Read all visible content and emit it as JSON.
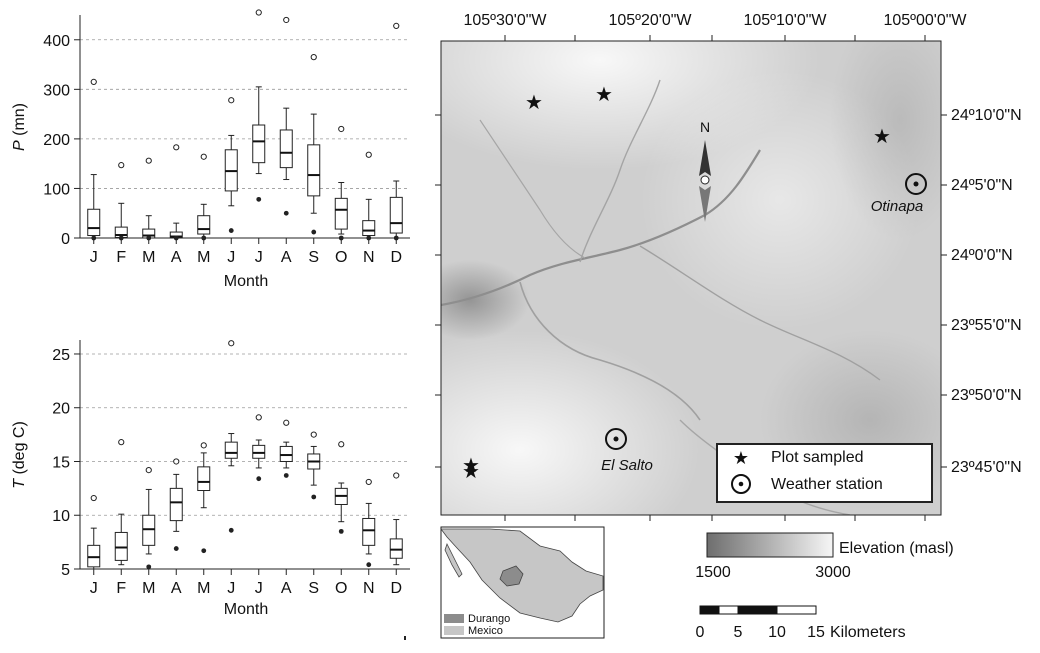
{
  "charts": [
    {
      "type": "boxplot",
      "ylabel_symbol": "P",
      "ylabel_unit": " (mn)",
      "xlabel": "Month",
      "categories": [
        "J",
        "F",
        "M",
        "A",
        "M",
        "J",
        "J",
        "A",
        "S",
        "O",
        "N",
        "D"
      ],
      "ylim": [
        0,
        450
      ],
      "yticks": [
        0,
        100,
        200,
        300,
        400
      ],
      "grid": "horizontal dashed",
      "boxes": [
        {
          "min": 0,
          "q1": 5,
          "median": 20,
          "q3": 58,
          "max": 128,
          "outliers_high": [
            315
          ],
          "outliers_low": [
            0
          ]
        },
        {
          "min": 0,
          "q1": 1,
          "median": 6,
          "q3": 22,
          "max": 70,
          "outliers_high": [
            147
          ],
          "outliers_low": [
            0
          ]
        },
        {
          "min": 0,
          "q1": 0,
          "median": 5,
          "q3": 18,
          "max": 45,
          "outliers_high": [
            156
          ],
          "outliers_low": [
            0
          ]
        },
        {
          "min": 0,
          "q1": 0,
          "median": 3,
          "q3": 12,
          "max": 30,
          "outliers_high": [
            183
          ],
          "outliers_low": [
            0
          ]
        },
        {
          "min": 0,
          "q1": 8,
          "median": 18,
          "q3": 45,
          "max": 68,
          "outliers_high": [
            164
          ],
          "outliers_low": [
            0
          ]
        },
        {
          "min": 65,
          "q1": 95,
          "median": 135,
          "q3": 178,
          "max": 207,
          "outliers_high": [
            278
          ],
          "outliers_low": [
            15
          ]
        },
        {
          "min": 130,
          "q1": 152,
          "median": 195,
          "q3": 228,
          "max": 305,
          "outliers_high": [
            455
          ],
          "outliers_low": [
            78
          ]
        },
        {
          "min": 118,
          "q1": 142,
          "median": 172,
          "q3": 218,
          "max": 262,
          "outliers_high": [
            440
          ],
          "outliers_low": [
            50
          ]
        },
        {
          "min": 50,
          "q1": 85,
          "median": 127,
          "q3": 188,
          "max": 250,
          "outliers_high": [
            365
          ],
          "outliers_low": [
            12
          ]
        },
        {
          "min": 8,
          "q1": 18,
          "median": 57,
          "q3": 80,
          "max": 112,
          "outliers_high": [
            220
          ],
          "outliers_low": [
            0
          ]
        },
        {
          "min": 0,
          "q1": 5,
          "median": 15,
          "q3": 35,
          "max": 78,
          "outliers_high": [
            168
          ],
          "outliers_low": [
            0
          ]
        },
        {
          "min": 0,
          "q1": 10,
          "median": 30,
          "q3": 82,
          "max": 115,
          "outliers_high": [
            428
          ],
          "outliers_low": [
            0
          ]
        }
      ]
    },
    {
      "type": "boxplot",
      "ylabel_symbol": "T",
      "ylabel_unit": " (deg C)",
      "xlabel": "Month",
      "categories": [
        "J",
        "F",
        "M",
        "A",
        "M",
        "J",
        "J",
        "A",
        "S",
        "O",
        "N",
        "D"
      ],
      "ylim": [
        5,
        26.3
      ],
      "yticks": [
        5,
        10,
        15,
        20,
        25
      ],
      "grid": "horizontal dashed",
      "boxes": [
        {
          "min": 5.0,
          "q1": 5.2,
          "median": 6.1,
          "q3": 7.2,
          "max": 8.8,
          "outliers_high": [
            11.6
          ],
          "outliers_low": []
        },
        {
          "min": 5.4,
          "q1": 5.8,
          "median": 7.0,
          "q3": 8.4,
          "max": 10.1,
          "outliers_high": [
            16.8
          ],
          "outliers_low": []
        },
        {
          "min": 6.4,
          "q1": 7.2,
          "median": 8.7,
          "q3": 10.0,
          "max": 12.4,
          "outliers_high": [
            14.2
          ],
          "outliers_low": [
            5.2
          ]
        },
        {
          "min": 8.5,
          "q1": 9.5,
          "median": 11.2,
          "q3": 12.5,
          "max": 13.8,
          "outliers_high": [
            15.0
          ],
          "outliers_low": [
            6.9
          ]
        },
        {
          "min": 10.7,
          "q1": 12.3,
          "median": 13.1,
          "q3": 14.5,
          "max": 15.8,
          "outliers_high": [
            16.5
          ],
          "outliers_low": [
            6.7
          ]
        },
        {
          "min": 14.6,
          "q1": 15.3,
          "median": 15.8,
          "q3": 16.8,
          "max": 17.6,
          "outliers_high": [
            26.0
          ],
          "outliers_low": [
            8.6
          ]
        },
        {
          "min": 14.4,
          "q1": 15.3,
          "median": 15.8,
          "q3": 16.5,
          "max": 17.0,
          "outliers_high": [
            19.1
          ],
          "outliers_low": [
            13.4
          ]
        },
        {
          "min": 14.4,
          "q1": 15.0,
          "median": 15.6,
          "q3": 16.4,
          "max": 16.8,
          "outliers_high": [
            18.6
          ],
          "outliers_low": [
            13.7
          ]
        },
        {
          "min": 12.8,
          "q1": 14.3,
          "median": 15.0,
          "q3": 15.7,
          "max": 16.4,
          "outliers_high": [
            17.5
          ],
          "outliers_low": [
            11.7
          ]
        },
        {
          "min": 9.4,
          "q1": 11.0,
          "median": 11.8,
          "q3": 12.5,
          "max": 13.0,
          "outliers_high": [
            16.6
          ],
          "outliers_low": [
            8.5
          ]
        },
        {
          "min": 6.4,
          "q1": 7.2,
          "median": 8.6,
          "q3": 9.7,
          "max": 11.1,
          "outliers_high": [
            13.1
          ],
          "outliers_low": [
            5.4
          ]
        },
        {
          "min": 5.4,
          "q1": 6.0,
          "median": 6.8,
          "q3": 7.8,
          "max": 9.6,
          "outliers_high": [
            13.7
          ],
          "outliers_low": []
        }
      ]
    }
  ],
  "map": {
    "top_labels": [
      "105º30'0\"W",
      "105º20'0\"W",
      "105º10'0\"W",
      "105º00'0\"W"
    ],
    "right_labels": [
      "24º10'0\"N",
      "24º5'0\"N",
      "24º0'0\"N",
      "23º55'0\"N",
      "23º50'0\"N",
      "23º45'0\"N"
    ],
    "north_label": "N",
    "stations": [
      {
        "name": "El Salto"
      },
      {
        "name": "Otinapa"
      }
    ],
    "plots": 5,
    "legend": [
      {
        "symbol": "star",
        "label": "Plot sampled"
      },
      {
        "symbol": "station",
        "label": "Weather station"
      }
    ],
    "elevation": {
      "title": "Elevation (masl)",
      "min_label": "1500",
      "max_label": "3000"
    },
    "scale": {
      "labels": [
        "0",
        "5",
        "10",
        "15"
      ],
      "unit": "Kilometers"
    },
    "inset_legend": [
      {
        "label": "Durango",
        "color": "#8c8c8c"
      },
      {
        "label": "Mexico",
        "color": "#c6c6c6"
      }
    ]
  }
}
